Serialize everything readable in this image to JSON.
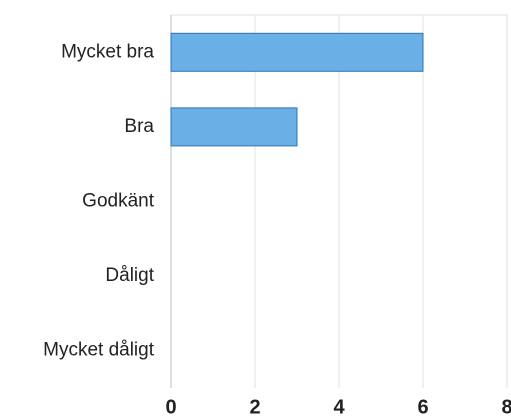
{
  "chart_data": {
    "type": "bar",
    "orientation": "horizontal",
    "categories": [
      "Mycket bra",
      "Bra",
      "Godkänt",
      "Dåligt",
      "Mycket dåligt"
    ],
    "values": [
      6,
      3,
      0,
      0,
      0
    ],
    "color": "#6aafe6",
    "xlim": [
      0,
      8
    ],
    "xticks": [
      0,
      2,
      4,
      6,
      8
    ],
    "grid": true
  }
}
